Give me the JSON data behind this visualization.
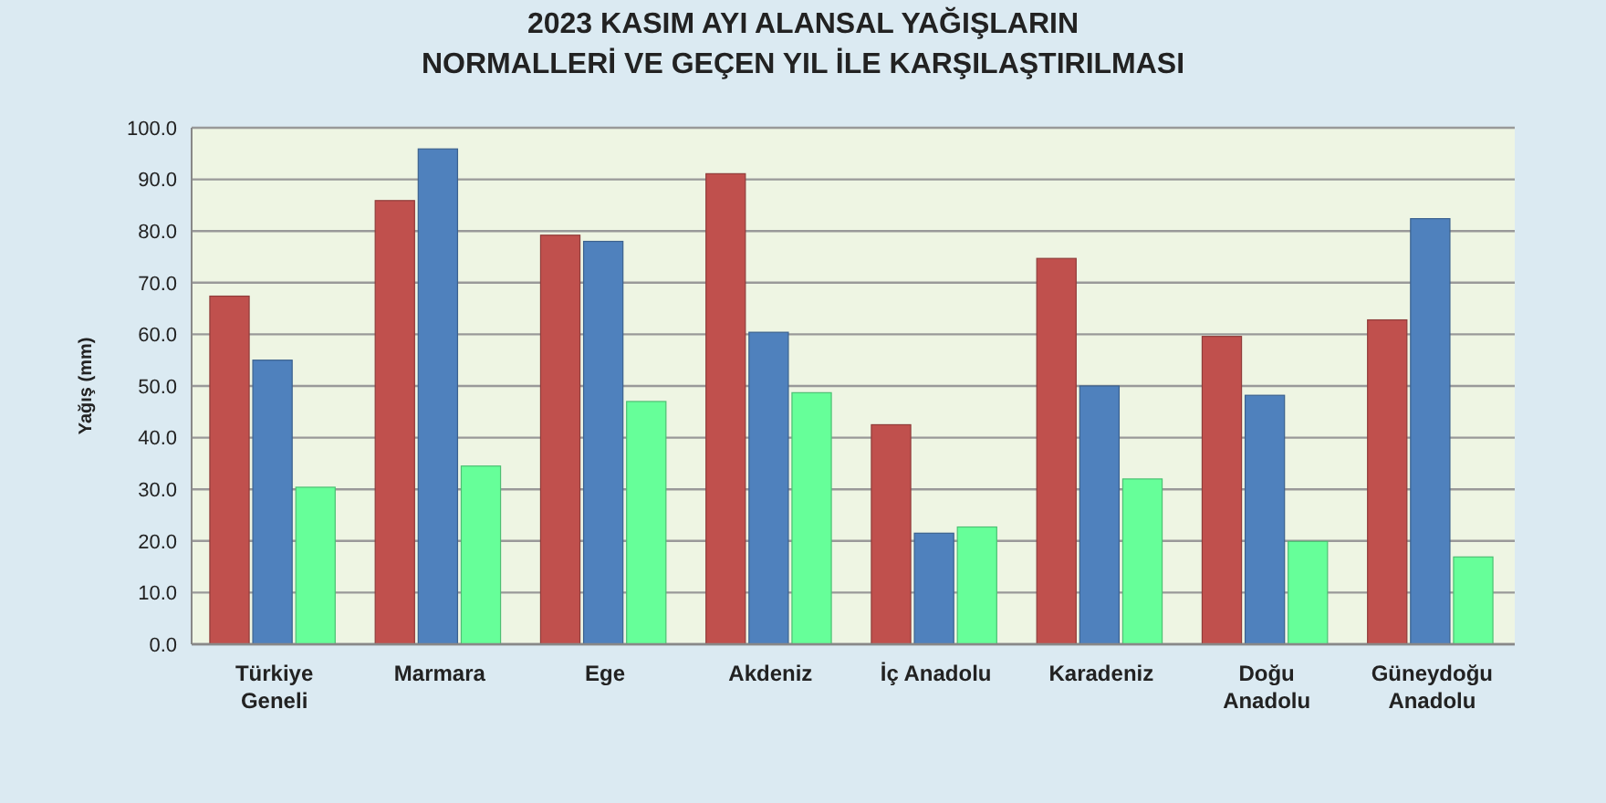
{
  "chart_data": {
    "type": "bar",
    "title": "2023 KASIM AYI ALANSAL YAĞIŞLARIN",
    "subtitle": "NORMALLERİ VE GEÇEN YIL İLE KARŞILAŞTIRILMASI",
    "ylabel": "Yağış (mm)",
    "categories": [
      "Türkiye Geneli",
      "Marmara",
      "Ege",
      "Akdeniz",
      "İç Anadolu",
      "Karadeniz",
      "Doğu Anadolu",
      "Güneydoğu Anadolu"
    ],
    "series": [
      {
        "color": "#c0504d",
        "values": [
          67.4,
          85.9,
          79.2,
          91.1,
          42.5,
          74.7,
          59.6,
          62.8
        ]
      },
      {
        "color": "#4f81bd",
        "values": [
          55.0,
          95.9,
          78.0,
          60.4,
          21.5,
          50.0,
          48.2,
          82.4
        ]
      },
      {
        "color": "#66ff99",
        "values": [
          30.4,
          34.5,
          47.0,
          48.7,
          22.7,
          32.0,
          19.9,
          16.9
        ]
      }
    ],
    "ylim": [
      0,
      100
    ],
    "yticks": [
      {
        "value": 0,
        "label": "0.0"
      },
      {
        "value": 10,
        "label": "10.0"
      },
      {
        "value": 20,
        "label": "20.0"
      },
      {
        "value": 30,
        "label": "30.0"
      },
      {
        "value": 40,
        "label": "40.0"
      },
      {
        "value": 50,
        "label": "50.0"
      },
      {
        "value": 60,
        "label": "60.0"
      },
      {
        "value": 70,
        "label": "70.0"
      },
      {
        "value": 80,
        "label": "80.0"
      },
      {
        "value": 90,
        "label": "90.0"
      },
      {
        "value": 100,
        "label": "100.0"
      }
    ],
    "grid": "y"
  }
}
